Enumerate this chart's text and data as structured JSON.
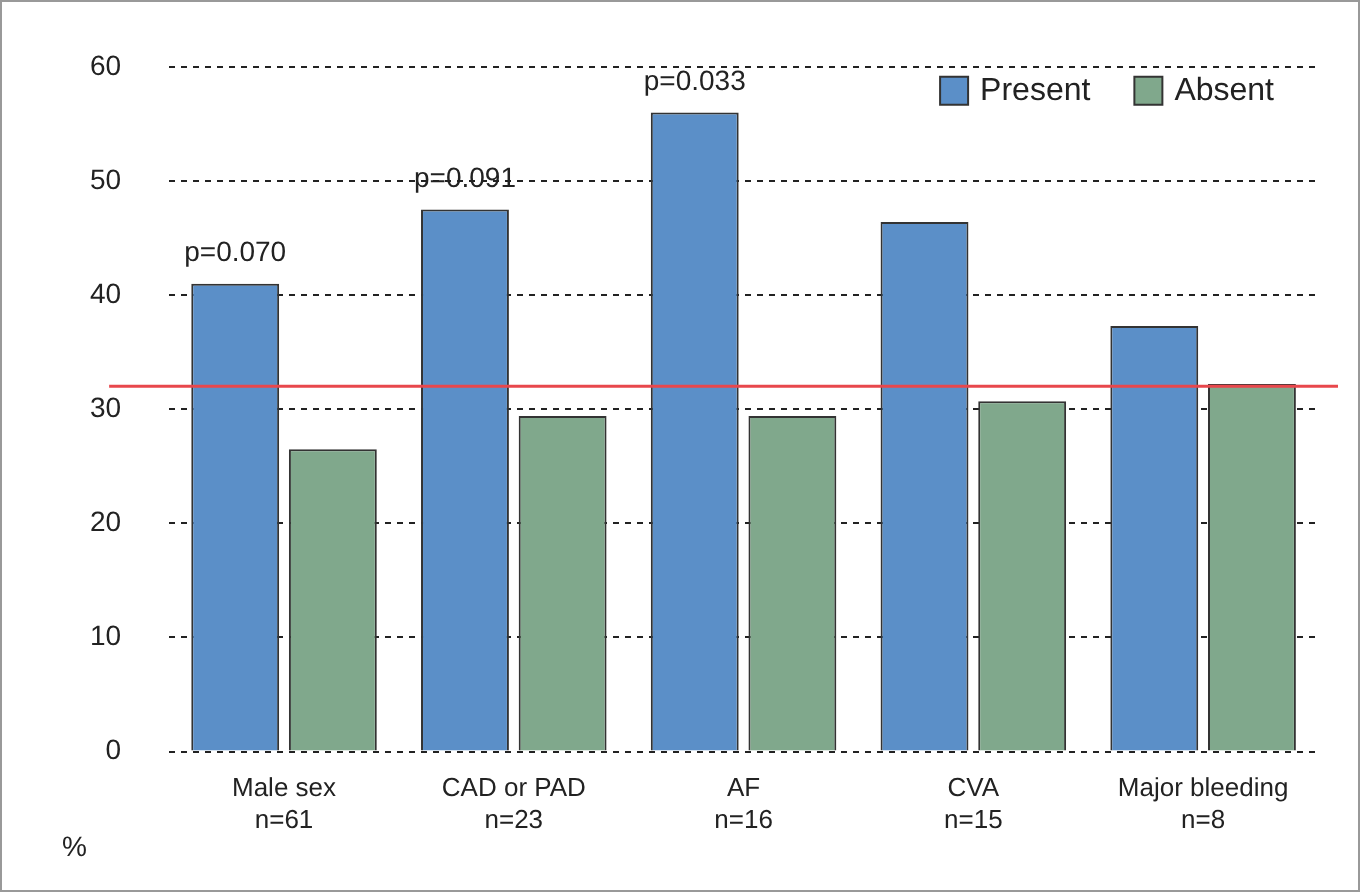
{
  "chart_data": {
    "type": "bar",
    "ylabel": "%",
    "categories": [
      "Male sex\nn=61",
      "CAD or PAD\nn=23",
      "AF\nn=16",
      "CVA\nn=15",
      "Major bleeding\nn=8"
    ],
    "series": [
      {
        "name": "Present",
        "color": "#5b8fc8",
        "values": [
          41,
          47.5,
          56,
          46.4,
          37.3
        ]
      },
      {
        "name": "Absent",
        "color": "#80a88c",
        "values": [
          26.5,
          29.4,
          29.4,
          30.7,
          32.2
        ]
      }
    ],
    "ylim": [
      0,
      60
    ],
    "yticks": [
      0,
      10,
      20,
      30,
      40,
      50,
      60
    ],
    "grid": "y",
    "legend": "top right",
    "ref_lines": [
      {
        "axis": "y",
        "value": 32,
        "color": "#e8474c"
      }
    ],
    "annotations": [
      {
        "text": "p=0.070",
        "x": "Male sex\nn=61",
        "y": 41
      },
      {
        "text": "p=0.091",
        "x": "CAD or PAD\nn=23",
        "y": 47.5
      },
      {
        "text": "p=0.033",
        "x": "AF\nn=16",
        "y": 56
      }
    ]
  }
}
